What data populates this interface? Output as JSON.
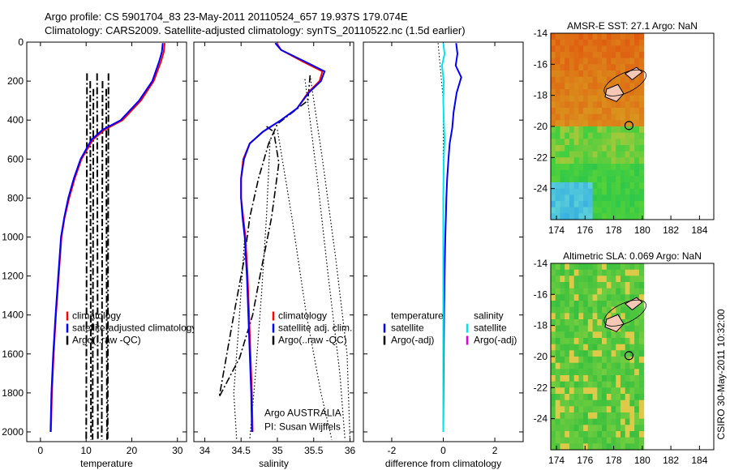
{
  "figure": {
    "title_line1": "Argo profile: CS 5901704_83 23-May-2011 20110524_657 19.937S 179.074E",
    "title_line2": "Climatology: CARS2009. Satellite-adjusted climatology: synTS_20110522.nc (1.5d earlier)",
    "credit": "CSIRO 30-May-2011 10:32:00"
  },
  "chart_data": [
    {
      "type": "line",
      "panel": "temperature",
      "xlabel": "temperature",
      "ylabel": "",
      "xlim": [
        -3,
        32
      ],
      "ylim": [
        2050,
        0
      ],
      "x_ticks": [
        0,
        10,
        20,
        30
      ],
      "y_ticks": [
        0,
        200,
        400,
        600,
        800,
        1000,
        1200,
        1400,
        1600,
        1800,
        2000
      ],
      "legend_position": "lower-right",
      "legend": [
        "climatology",
        "satellite-adjusted climatology",
        "Argo(..raw -QC)"
      ],
      "series": [
        {
          "name": "climatology",
          "color": "#ff0000",
          "style": "solid",
          "points": [
            [
              27.2,
              5
            ],
            [
              27.0,
              50
            ],
            [
              26.4,
              100
            ],
            [
              24.8,
              200
            ],
            [
              22.0,
              300
            ],
            [
              18.0,
              400
            ],
            [
              14.0,
              450
            ],
            [
              11.5,
              500
            ],
            [
              9.0,
              600
            ],
            [
              7.5,
              700
            ],
            [
              6.3,
              800
            ],
            [
              5.3,
              900
            ],
            [
              4.6,
              1000
            ],
            [
              4.0,
              1200
            ],
            [
              3.4,
              1400
            ],
            [
              2.9,
              1600
            ],
            [
              2.5,
              1800
            ],
            [
              2.3,
              2000
            ]
          ]
        },
        {
          "name": "satellite-adjusted climatology",
          "color": "#0000ff",
          "style": "solid",
          "points": [
            [
              26.8,
              5
            ],
            [
              26.6,
              50
            ],
            [
              26.0,
              100
            ],
            [
              24.5,
              200
            ],
            [
              21.6,
              300
            ],
            [
              17.6,
              400
            ],
            [
              13.6,
              450
            ],
            [
              11.2,
              500
            ],
            [
              8.8,
              600
            ],
            [
              7.3,
              700
            ],
            [
              6.1,
              800
            ],
            [
              5.2,
              900
            ],
            [
              4.5,
              1000
            ],
            [
              3.9,
              1200
            ],
            [
              3.3,
              1400
            ],
            [
              2.8,
              1600
            ],
            [
              2.4,
              1800
            ],
            [
              2.2,
              2000
            ]
          ]
        }
      ],
      "argo_xs": [
        10.2,
        10.9,
        11.6,
        12.4,
        13.6,
        14.4,
        14.9
      ],
      "argo_depth_range": [
        160,
        2040
      ]
    },
    {
      "type": "line",
      "panel": "salinity",
      "xlabel": "salinity",
      "ylabel": "",
      "xlim": [
        33.85,
        36.05
      ],
      "ylim": [
        2050,
        0
      ],
      "x_ticks": [
        34,
        34.5,
        35,
        35.5,
        36
      ],
      "legend_position": "lower-right",
      "legend": [
        "climatology",
        "satellite adj. clim.",
        "Argo(..raw -QC)"
      ],
      "annotation": [
        "Argo AUSTRALIA",
        "PI: Susan Wijffels"
      ],
      "series": [
        {
          "name": "climatology",
          "color": "#ff0000",
          "style": "solid",
          "points": [
            [
              34.99,
              5
            ],
            [
              35.05,
              40
            ],
            [
              35.35,
              100
            ],
            [
              35.62,
              150
            ],
            [
              35.58,
              200
            ],
            [
              35.42,
              260
            ],
            [
              35.27,
              340
            ],
            [
              35.05,
              400
            ],
            [
              34.8,
              460
            ],
            [
              34.62,
              520
            ],
            [
              34.53,
              600
            ],
            [
              34.5,
              700
            ],
            [
              34.5,
              800
            ],
            [
              34.53,
              900
            ],
            [
              34.56,
              1000
            ],
            [
              34.59,
              1200
            ],
            [
              34.61,
              1400
            ],
            [
              34.63,
              1600
            ],
            [
              34.65,
              1800
            ],
            [
              34.66,
              2000
            ]
          ]
        },
        {
          "name": "satellite adj. clim.",
          "color": "#0000ff",
          "style": "solid",
          "points": [
            [
              34.97,
              5
            ],
            [
              35.05,
              40
            ],
            [
              35.38,
              100
            ],
            [
              35.65,
              150
            ],
            [
              35.6,
              200
            ],
            [
              35.43,
              260
            ],
            [
              35.27,
              340
            ],
            [
              35.05,
              400
            ],
            [
              34.8,
              460
            ],
            [
              34.62,
              520
            ],
            [
              34.54,
              600
            ],
            [
              34.5,
              700
            ],
            [
              34.5,
              800
            ],
            [
              34.52,
              900
            ],
            [
              34.55,
              1000
            ],
            [
              34.58,
              1200
            ],
            [
              34.6,
              1400
            ],
            [
              34.62,
              1600
            ],
            [
              34.64,
              1800
            ],
            [
              34.65,
              2000
            ]
          ]
        }
      ],
      "argo_dashdot": [
        [
          [
            35.45,
            170
          ],
          [
            35.42,
            300
          ],
          [
            35.0,
            420
          ],
          [
            34.88,
            520
          ],
          [
            34.74,
            700
          ],
          [
            34.62,
            900
          ],
          [
            34.55,
            1100
          ],
          [
            34.4,
            1400
          ],
          [
            34.2,
            1820
          ],
          [
            34.48,
            1620
          ],
          [
            34.66,
            1400
          ],
          [
            34.76,
            1200
          ],
          [
            34.92,
            900
          ],
          [
            35.02,
            620
          ],
          [
            34.95,
            460
          ],
          [
            34.84,
            430
          ]
        ]
      ],
      "argo_dotted": [
        [
          [
            35.45,
            170
          ],
          [
            35.62,
            600
          ],
          [
            35.8,
            1100
          ],
          [
            35.96,
            1600
          ],
          [
            36.0,
            2040
          ]
        ],
        [
          [
            35.38,
            190
          ],
          [
            35.55,
            700
          ],
          [
            35.7,
            1200
          ],
          [
            35.86,
            1700
          ],
          [
            35.93,
            2040
          ]
        ],
        [
          [
            35.0,
            450
          ],
          [
            35.2,
            900
          ],
          [
            35.4,
            1400
          ],
          [
            35.6,
            1800
          ],
          [
            35.75,
            2040
          ]
        ],
        [
          [
            34.9,
            500
          ],
          [
            34.85,
            900
          ],
          [
            34.78,
            1300
          ],
          [
            34.7,
            1700
          ],
          [
            34.62,
            2040
          ]
        ],
        [
          [
            34.55,
            1000
          ],
          [
            34.46,
            1500
          ],
          [
            34.4,
            1800
          ],
          [
            34.44,
            2040
          ]
        ]
      ]
    },
    {
      "type": "line",
      "panel": "difference",
      "xlabel": "difference from climatology",
      "ylabel": "",
      "xlim": [
        -3.1,
        3.1
      ],
      "ylim": [
        2050,
        0
      ],
      "x_ticks": [
        -2,
        0,
        2
      ],
      "legend_position": "lower-left",
      "legend_groups": [
        {
          "heading": "temperature",
          "items": [
            "satellite",
            "Argo(-adj)"
          ]
        },
        {
          "heading": "salinity",
          "items": [
            "satellite",
            "Argo(-adj)"
          ]
        }
      ],
      "series": [
        {
          "name": "temperature satellite",
          "color": "#0000ff",
          "style": "solid",
          "points": [
            [
              0.5,
              5
            ],
            [
              0.55,
              60
            ],
            [
              0.48,
              120
            ],
            [
              0.7,
              180
            ],
            [
              0.52,
              260
            ],
            [
              0.4,
              360
            ],
            [
              0.35,
              440
            ],
            [
              0.25,
              520
            ],
            [
              0.2,
              600
            ],
            [
              0.15,
              700
            ],
            [
              0.12,
              800
            ],
            [
              0.1,
              900
            ],
            [
              0.08,
              1000
            ],
            [
              0.05,
              1200
            ],
            [
              0.03,
              1400
            ],
            [
              0.02,
              1600
            ],
            [
              0.01,
              1800
            ],
            [
              0.0,
              2000
            ]
          ]
        },
        {
          "name": "salinity satellite",
          "color": "#00e5ee",
          "style": "solid",
          "points": [
            [
              0.0,
              5
            ],
            [
              0.05,
              60
            ],
            [
              -0.05,
              120
            ],
            [
              0.02,
              200
            ],
            [
              0.0,
              300
            ],
            [
              0.02,
              400
            ],
            [
              0.05,
              500
            ],
            [
              0.02,
              600
            ],
            [
              0.0,
              800
            ],
            [
              0.0,
              1000
            ],
            [
              0.0,
              2000
            ]
          ]
        }
      ],
      "dotted_zero": [
        [
          -0.2,
          5
        ],
        [
          0.0,
          300
        ],
        [
          0.0,
          2000
        ]
      ]
    },
    {
      "type": "heatmap",
      "panel": "AMSR-E SST",
      "title": "AMSR-E SST: 27.1 Argo: NaN",
      "xlim": [
        173.6,
        185
      ],
      "ylim": [
        -26,
        -14
      ],
      "x_ticks": [
        174,
        176,
        178,
        180,
        182,
        184
      ],
      "y_ticks": [
        -14,
        -16,
        -18,
        -20,
        -22,
        -24
      ],
      "data_extent_lon": [
        173.6,
        180.1
      ],
      "argo_marker": [
        179.07,
        -19.94
      ]
    },
    {
      "type": "heatmap",
      "panel": "Altimetric SLA",
      "title": "Altimetric SLA: 0.069 Argo: NaN",
      "xlim": [
        173.6,
        185
      ],
      "ylim": [
        -26,
        -14
      ],
      "x_ticks": [
        174,
        176,
        178,
        180,
        182,
        184
      ],
      "y_ticks": [
        -14,
        -16,
        -18,
        -20,
        -22,
        -24
      ],
      "data_extent_lon": [
        173.6,
        180.1
      ],
      "argo_marker": [
        179.07,
        -19.94
      ]
    }
  ]
}
